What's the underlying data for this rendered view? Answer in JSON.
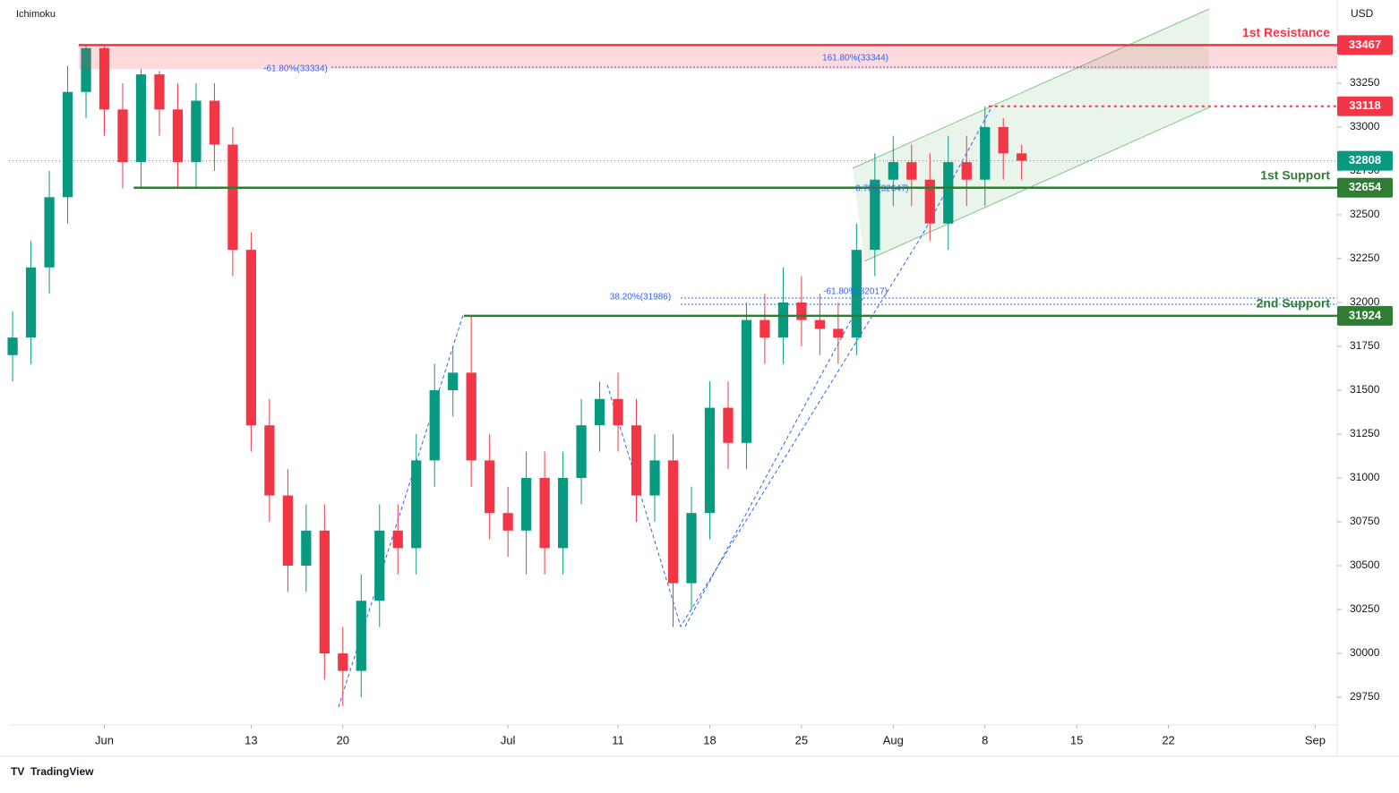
{
  "chart_data": {
    "type": "candlestick",
    "indicator": "Ichimoku",
    "currency": "USD",
    "brand": "TradingView",
    "x": [
      -5,
      -4,
      -3,
      -2,
      -1,
      0,
      1,
      2,
      3,
      4,
      5,
      6,
      7,
      8,
      9,
      10,
      11,
      12,
      13,
      14,
      15,
      16,
      17,
      18,
      19,
      20,
      21,
      22,
      23,
      24,
      25,
      26,
      27,
      28,
      29,
      30,
      31,
      32,
      33,
      34,
      35,
      36,
      37,
      38,
      39,
      40,
      41,
      42,
      43,
      44,
      45,
      46,
      47,
      48,
      49,
      50
    ],
    "open": [
      31700,
      31800,
      32200,
      32600,
      33200,
      33450,
      33100,
      32800,
      33300,
      33100,
      32800,
      33150,
      32900,
      32300,
      31300,
      30900,
      30500,
      30700,
      30000,
      29900,
      30300,
      30700,
      30600,
      31100,
      31500,
      31600,
      31100,
      30800,
      30700,
      31000,
      30600,
      31000,
      31300,
      31450,
      31300,
      30900,
      31100,
      30400,
      30800,
      31400,
      31200,
      31900,
      31800,
      32000,
      31900,
      31850,
      31800,
      32300,
      32700,
      32800,
      32700,
      32450,
      32800,
      32700,
      33000,
      32850
    ],
    "high": [
      31950,
      32350,
      32750,
      33350,
      33467,
      33460,
      33250,
      33330,
      33320,
      33250,
      33250,
      33250,
      33000,
      32400,
      31450,
      31050,
      30850,
      30850,
      30150,
      30450,
      30850,
      30850,
      31250,
      31650,
      31750,
      31924,
      31250,
      30950,
      31150,
      31150,
      31150,
      31450,
      31550,
      31600,
      31450,
      31250,
      31250,
      30950,
      31550,
      31550,
      32000,
      32050,
      32200,
      32150,
      32050,
      32000,
      32450,
      32850,
      32950,
      32900,
      32850,
      32950,
      32950,
      33118,
      33050,
      32900
    ],
    "low": [
      31550,
      31650,
      32050,
      32450,
      33050,
      32950,
      32650,
      32650,
      32950,
      32650,
      32650,
      32750,
      32150,
      31150,
      30750,
      30350,
      30350,
      29850,
      29700,
      29750,
      30150,
      30450,
      30450,
      30950,
      31350,
      30950,
      30650,
      30550,
      30450,
      30450,
      30450,
      30850,
      31150,
      31150,
      30750,
      30750,
      30150,
      30250,
      30650,
      31050,
      31050,
      31650,
      31650,
      31750,
      31700,
      31650,
      31700,
      32150,
      32550,
      32550,
      32350,
      32300,
      32550,
      32550,
      32700,
      32700
    ],
    "close": [
      31800,
      32200,
      32600,
      33200,
      33450,
      33100,
      32800,
      33300,
      33100,
      32800,
      33150,
      32900,
      32300,
      31300,
      30900,
      30500,
      30700,
      30000,
      29900,
      30300,
      30700,
      30600,
      31100,
      31500,
      31600,
      31100,
      30800,
      30700,
      31000,
      30600,
      31000,
      31300,
      31450,
      31300,
      30900,
      31100,
      30400,
      30800,
      31400,
      31200,
      31900,
      31800,
      32000,
      31900,
      31850,
      31800,
      32300,
      32700,
      32800,
      32700,
      32450,
      32800,
      32700,
      33000,
      32850,
      32808
    ],
    "up_color": "#089981",
    "down_color": "#f23645",
    "xlim": [
      -5.2,
      67.2
    ],
    "xticks": [
      {
        "value": 0,
        "label": "Jun"
      },
      {
        "value": 8,
        "label": "13"
      },
      {
        "value": 13,
        "label": "20"
      },
      {
        "value": 22,
        "label": "Jul"
      },
      {
        "value": 28,
        "label": "11"
      },
      {
        "value": 33,
        "label": "18"
      },
      {
        "value": 38,
        "label": "25"
      },
      {
        "value": 43,
        "label": "Aug"
      },
      {
        "value": 48,
        "label": "8"
      },
      {
        "value": 53,
        "label": "15"
      },
      {
        "value": 58,
        "label": "22"
      },
      {
        "value": 66,
        "label": "Sep"
      }
    ],
    "ylim": [
      29592,
      33724
    ],
    "yticks": [
      29750,
      30000,
      30250,
      30500,
      30750,
      31000,
      31250,
      31500,
      31750,
      32000,
      32250,
      32500,
      32750,
      33000,
      33250
    ],
    "levels": [
      {
        "label": "1st Resistance",
        "value": 33467,
        "color": "#f23645",
        "start": -1.4,
        "style": "solid"
      },
      {
        "value": 33118,
        "color": "#f23645",
        "start": 48.2,
        "style": "dotted"
      },
      {
        "value": 32808,
        "color": "#089981",
        "start": -5.2,
        "style": "price"
      },
      {
        "label": "1st Support",
        "value": 32654,
        "color": "#2e7d32",
        "start": 1.6,
        "style": "solid"
      },
      {
        "label": "2nd Support",
        "value": 31924,
        "color": "#2e7d32",
        "start": 19.6,
        "style": "solid"
      }
    ],
    "annotations": [
      "-61.80%(33334)",
      "161.80%(33344)",
      "0.786(32647)",
      "-61.80%(32017)",
      "38.20%(31986)"
    ]
  }
}
